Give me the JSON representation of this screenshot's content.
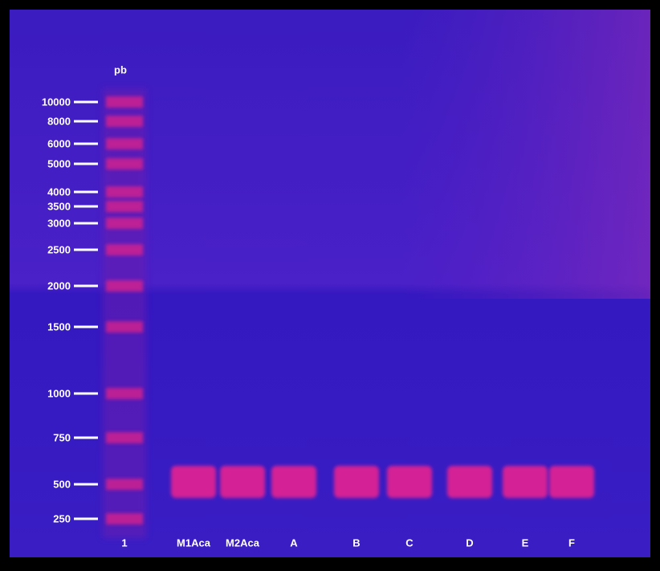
{
  "header": {
    "title": "pb"
  },
  "markers": [
    "10000",
    "8000",
    "6000",
    "5000",
    "4000",
    "3500",
    "3000",
    "2500",
    "2000",
    "1500",
    "1000",
    "750",
    "500",
    "250"
  ],
  "lanes": [
    "1",
    "M1Aca",
    "M2Aca",
    "A",
    "B",
    "C",
    "D",
    "E",
    "F"
  ]
}
